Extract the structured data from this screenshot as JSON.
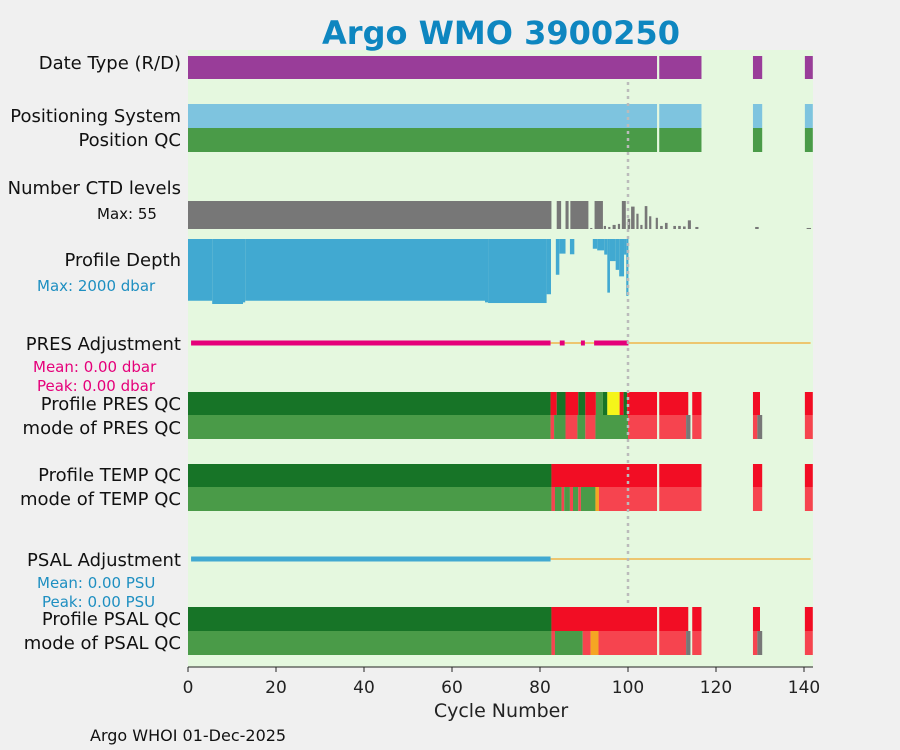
{
  "chart_data": {
    "type": "timeline",
    "title": "Argo WMO 3900250",
    "xlabel": "Cycle Number",
    "xlim": [
      0,
      142
    ],
    "xticks": [
      0,
      20,
      40,
      60,
      80,
      100,
      120,
      140
    ],
    "reference_cycle": 100,
    "footer": "Argo WHOI 01-Dec-2025",
    "colors": {
      "plot_bg": "#e5f8df",
      "purple": "#993d99",
      "lightblue": "#7ec4df",
      "green": "#4a9b48",
      "darkgreen": "#177427",
      "red": "#f20d24",
      "lightred": "#f6444f",
      "gray": "#777777",
      "yellow": "#f5f51a",
      "orange": "#f5a623",
      "blue": "#41a9d1",
      "magenta": "#e5007a",
      "hline": "#f0b64a",
      "refline": "#bbbbbb"
    },
    "rows": {
      "date_type": {
        "label": "Date Type (R/D)",
        "segments": [
          {
            "start": 0,
            "end": 106.6,
            "color": "purple"
          },
          {
            "start": 107.1,
            "end": 116.7,
            "color": "purple"
          },
          {
            "start": 128.4,
            "end": 130.5,
            "color": "purple"
          },
          {
            "start": 140.2,
            "end": 142,
            "color": "purple"
          }
        ]
      },
      "positioning_system": {
        "label": "Positioning System",
        "segments": [
          {
            "start": 0,
            "end": 106.6,
            "color": "lightblue"
          },
          {
            "start": 107.1,
            "end": 116.7,
            "color": "lightblue"
          },
          {
            "start": 128.4,
            "end": 130.5,
            "color": "lightblue"
          },
          {
            "start": 140.2,
            "end": 142,
            "color": "lightblue"
          }
        ]
      },
      "position_qc": {
        "label": "Position QC",
        "segments": [
          {
            "start": 0,
            "end": 106.6,
            "color": "green"
          },
          {
            "start": 107.1,
            "end": 116.7,
            "color": "green"
          },
          {
            "start": 128.4,
            "end": 130.5,
            "color": "green"
          },
          {
            "start": 140.2,
            "end": 142,
            "color": "green"
          }
        ]
      },
      "ctd_levels": {
        "label": "Number CTD levels",
        "max_label": "Max: 55",
        "max": 55,
        "bars": [
          {
            "start": 0,
            "end": 82.6,
            "value": 55
          },
          {
            "start": 83.8,
            "end": 84.8,
            "value": 55
          },
          {
            "start": 85.8,
            "end": 86.5,
            "value": 55
          },
          {
            "start": 86.9,
            "end": 91.0,
            "value": 55
          },
          {
            "start": 91.4,
            "end": 91.9,
            "value": 2
          },
          {
            "start": 92.4,
            "end": 94.3,
            "value": 55
          },
          {
            "start": 94.5,
            "end": 95.0,
            "value": 6
          },
          {
            "start": 95.5,
            "end": 96.0,
            "value": 4
          },
          {
            "start": 96.5,
            "end": 97.2,
            "value": 8
          },
          {
            "start": 97.7,
            "end": 98.2,
            "value": 10
          },
          {
            "start": 98.6,
            "end": 99.5,
            "value": 55
          },
          {
            "start": 99.9,
            "end": 100.5,
            "value": 20
          },
          {
            "start": 100.7,
            "end": 101.5,
            "value": 44
          },
          {
            "start": 101.9,
            "end": 102.4,
            "value": 30
          },
          {
            "start": 102.8,
            "end": 103.3,
            "value": 8
          },
          {
            "start": 103.8,
            "end": 104.4,
            "value": 45
          },
          {
            "start": 104.8,
            "end": 105.3,
            "value": 25
          },
          {
            "start": 106.3,
            "end": 106.8,
            "value": 22
          },
          {
            "start": 107.3,
            "end": 107.9,
            "value": 6
          },
          {
            "start": 108.4,
            "end": 109.0,
            "value": 12
          },
          {
            "start": 110.3,
            "end": 110.9,
            "value": 6
          },
          {
            "start": 111.4,
            "end": 112.0,
            "value": 6
          },
          {
            "start": 112.5,
            "end": 113.1,
            "value": 5
          },
          {
            "start": 113.6,
            "end": 114.3,
            "value": 17
          },
          {
            "start": 115.3,
            "end": 116.0,
            "value": 4
          },
          {
            "start": 128.9,
            "end": 129.7,
            "value": 4
          },
          {
            "start": 140.6,
            "end": 141.6,
            "value": 2
          }
        ]
      },
      "profile_depth": {
        "label": "Profile Depth",
        "max_label": "Max: 2000 dbar",
        "max": 2000,
        "bars": [
          {
            "start": 0,
            "end": 5.5,
            "value": 1900
          },
          {
            "start": 5.5,
            "end": 12.5,
            "value": 2000
          },
          {
            "start": 12.5,
            "end": 13.0,
            "value": 1950
          },
          {
            "start": 13.0,
            "end": 67.5,
            "value": 1900
          },
          {
            "start": 67.5,
            "end": 68.2,
            "value": 1950
          },
          {
            "start": 68.2,
            "end": 81.5,
            "value": 1970
          },
          {
            "start": 81.5,
            "end": 82.5,
            "value": 1700
          },
          {
            "start": 83.6,
            "end": 84.4,
            "value": 1100
          },
          {
            "start": 84.4,
            "end": 85.8,
            "value": 450
          },
          {
            "start": 86.8,
            "end": 87.8,
            "value": 470
          },
          {
            "start": 92.0,
            "end": 93.0,
            "value": 300
          },
          {
            "start": 93.0,
            "end": 94.6,
            "value": 350
          },
          {
            "start": 94.6,
            "end": 95.3,
            "value": 480
          },
          {
            "start": 95.3,
            "end": 95.9,
            "value": 1650
          },
          {
            "start": 95.9,
            "end": 97.2,
            "value": 680
          },
          {
            "start": 97.2,
            "end": 98.0,
            "value": 950
          },
          {
            "start": 98.0,
            "end": 99.1,
            "value": 1150
          },
          {
            "start": 99.1,
            "end": 99.6,
            "value": 480
          },
          {
            "start": 99.6,
            "end": 100.1,
            "value": 1750
          }
        ]
      },
      "pres_adjustment": {
        "label": "PRES Adjustment",
        "mean_label": "Mean: 0.00 dbar",
        "peak_label": "Peak: 0.00 dbar",
        "line_end": 141.5,
        "segments": [
          {
            "start": 0.7,
            "end": 82.4
          },
          {
            "start": 84.5,
            "end": 85.6
          },
          {
            "start": 89.3,
            "end": 90.2
          },
          {
            "start": 92.3,
            "end": 100.1
          }
        ]
      },
      "profile_pres_qc": {
        "label": "Profile PRES QC",
        "segments": [
          {
            "start": 0,
            "end": 82.4,
            "color": "darkgreen"
          },
          {
            "start": 82.4,
            "end": 83.8,
            "color": "red"
          },
          {
            "start": 83.8,
            "end": 85.8,
            "color": "darkgreen"
          },
          {
            "start": 85.8,
            "end": 88.7,
            "color": "red"
          },
          {
            "start": 88.7,
            "end": 90.3,
            "color": "darkgreen"
          },
          {
            "start": 90.3,
            "end": 92.7,
            "color": "red"
          },
          {
            "start": 92.7,
            "end": 94.3,
            "color": "green"
          },
          {
            "start": 94.3,
            "end": 95.3,
            "color": "darkgreen"
          },
          {
            "start": 95.3,
            "end": 98.1,
            "color": "yellow"
          },
          {
            "start": 98.1,
            "end": 99.0,
            "color": "red"
          },
          {
            "start": 99.0,
            "end": 99.8,
            "color": "darkgreen"
          },
          {
            "start": 99.8,
            "end": 106.6,
            "color": "red"
          },
          {
            "start": 107.1,
            "end": 113.7,
            "color": "red"
          },
          {
            "start": 114.6,
            "end": 116.7,
            "color": "red"
          },
          {
            "start": 128.4,
            "end": 130.0,
            "color": "red"
          },
          {
            "start": 140.2,
            "end": 142,
            "color": "red"
          }
        ]
      },
      "mode_pres_qc": {
        "label": "mode of PRES QC",
        "segments": [
          {
            "start": 0,
            "end": 82.4,
            "color": "green"
          },
          {
            "start": 82.4,
            "end": 83.2,
            "color": "lightred"
          },
          {
            "start": 83.2,
            "end": 85.8,
            "color": "green"
          },
          {
            "start": 85.8,
            "end": 88.5,
            "color": "lightred"
          },
          {
            "start": 88.5,
            "end": 90.3,
            "color": "green"
          },
          {
            "start": 90.3,
            "end": 92.6,
            "color": "lightred"
          },
          {
            "start": 92.6,
            "end": 100.0,
            "color": "green"
          },
          {
            "start": 100.0,
            "end": 106.6,
            "color": "lightred"
          },
          {
            "start": 107.1,
            "end": 113.2,
            "color": "lightred"
          },
          {
            "start": 113.2,
            "end": 114.2,
            "color": "gray"
          },
          {
            "start": 114.6,
            "end": 116.7,
            "color": "lightred"
          },
          {
            "start": 128.4,
            "end": 129.4,
            "color": "lightred"
          },
          {
            "start": 129.4,
            "end": 130.5,
            "color": "gray"
          },
          {
            "start": 140.2,
            "end": 142,
            "color": "lightred"
          }
        ]
      },
      "profile_temp_qc": {
        "label": "Profile TEMP QC",
        "segments": [
          {
            "start": 0,
            "end": 82.6,
            "color": "darkgreen"
          },
          {
            "start": 82.6,
            "end": 106.6,
            "color": "red"
          },
          {
            "start": 107.1,
            "end": 116.7,
            "color": "red"
          },
          {
            "start": 128.4,
            "end": 130.5,
            "color": "red"
          },
          {
            "start": 140.2,
            "end": 142,
            "color": "red"
          }
        ]
      },
      "mode_temp_qc": {
        "label": "mode of TEMP QC",
        "segments": [
          {
            "start": 0,
            "end": 82.6,
            "color": "green"
          },
          {
            "start": 82.6,
            "end": 83.4,
            "color": "lightred"
          },
          {
            "start": 83.4,
            "end": 84.9,
            "color": "green"
          },
          {
            "start": 84.9,
            "end": 85.5,
            "color": "lightred"
          },
          {
            "start": 85.5,
            "end": 86.8,
            "color": "green"
          },
          {
            "start": 86.8,
            "end": 87.5,
            "color": "lightred"
          },
          {
            "start": 87.5,
            "end": 88.7,
            "color": "green"
          },
          {
            "start": 88.7,
            "end": 89.3,
            "color": "lightred"
          },
          {
            "start": 89.3,
            "end": 92.6,
            "color": "green"
          },
          {
            "start": 92.6,
            "end": 93.4,
            "color": "orange"
          },
          {
            "start": 93.4,
            "end": 106.6,
            "color": "lightred"
          },
          {
            "start": 107.1,
            "end": 116.7,
            "color": "lightred"
          },
          {
            "start": 128.4,
            "end": 130.5,
            "color": "lightred"
          },
          {
            "start": 140.2,
            "end": 142,
            "color": "lightred"
          }
        ]
      },
      "psal_adjustment": {
        "label": "PSAL Adjustment",
        "mean_label": "Mean: 0.00 PSU",
        "peak_label": "Peak: 0.00 PSU",
        "line_end": 141.5,
        "segments": [
          {
            "start": 0.7,
            "end": 82.4
          }
        ]
      },
      "profile_psal_qc": {
        "label": "Profile PSAL QC",
        "segments": [
          {
            "start": 0,
            "end": 82.6,
            "color": "darkgreen"
          },
          {
            "start": 82.6,
            "end": 106.6,
            "color": "red"
          },
          {
            "start": 107.1,
            "end": 113.7,
            "color": "red"
          },
          {
            "start": 114.6,
            "end": 116.7,
            "color": "red"
          },
          {
            "start": 128.4,
            "end": 130.0,
            "color": "red"
          },
          {
            "start": 140.2,
            "end": 142,
            "color": "red"
          }
        ]
      },
      "mode_psal_qc": {
        "label": "mode of PSAL QC",
        "segments": [
          {
            "start": 0,
            "end": 82.6,
            "color": "green"
          },
          {
            "start": 82.6,
            "end": 83.4,
            "color": "lightred"
          },
          {
            "start": 83.4,
            "end": 89.7,
            "color": "green"
          },
          {
            "start": 89.7,
            "end": 91.5,
            "color": "lightred"
          },
          {
            "start": 91.5,
            "end": 93.3,
            "color": "orange"
          },
          {
            "start": 93.3,
            "end": 106.6,
            "color": "lightred"
          },
          {
            "start": 107.1,
            "end": 113.2,
            "color": "lightred"
          },
          {
            "start": 113.2,
            "end": 114.2,
            "color": "gray"
          },
          {
            "start": 114.6,
            "end": 116.7,
            "color": "lightred"
          },
          {
            "start": 128.4,
            "end": 129.4,
            "color": "lightred"
          },
          {
            "start": 129.4,
            "end": 130.5,
            "color": "gray"
          },
          {
            "start": 140.2,
            "end": 142,
            "color": "lightred"
          }
        ]
      }
    }
  }
}
